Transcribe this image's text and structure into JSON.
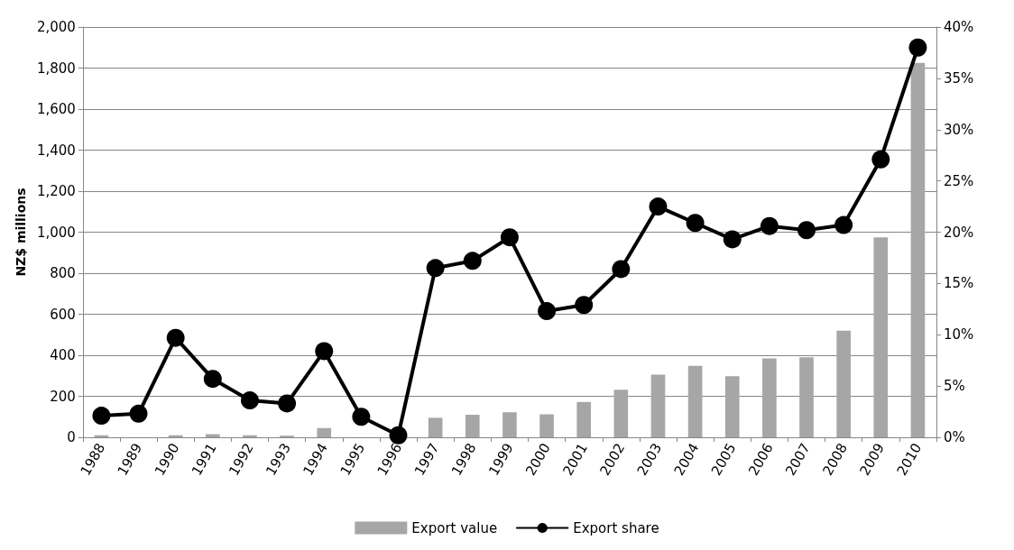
{
  "chart_data": {
    "type": "bar",
    "ylabel": "NZ$ millions",
    "categories": [
      "1988",
      "1989",
      "1990",
      "1991",
      "1992",
      "1993",
      "1994",
      "1995",
      "1996",
      "1997",
      "1998",
      "1999",
      "2000",
      "2001",
      "2002",
      "2003",
      "2004",
      "2005",
      "2006",
      "2007",
      "2008",
      "2009",
      "2010"
    ],
    "series": [
      {
        "name": "Export value",
        "color": "#a6a6a6",
        "values": [
          10,
          null,
          10,
          15,
          10,
          8,
          45,
          null,
          null,
          95,
          110,
          122,
          112,
          172,
          232,
          305,
          348,
          298,
          385,
          390,
          520,
          975,
          1825
        ]
      },
      {
        "name": "Export share",
        "type": "line",
        "axis": "y2",
        "color": "#000000",
        "marker": "circle",
        "values": [
          2.1,
          2.3,
          9.7,
          5.7,
          3.6,
          3.3,
          8.4,
          2.0,
          0.2,
          16.5,
          17.2,
          19.5,
          12.3,
          12.9,
          16.4,
          22.5,
          20.9,
          19.3,
          20.6,
          20.2,
          20.7,
          27.1,
          38.0
        ]
      }
    ],
    "ylim": [
      0,
      2000
    ],
    "yticks": [
      0,
      200,
      400,
      600,
      800,
      {
        "value": 1000,
        "label": "1,000"
      },
      {
        "value": 1200,
        "label": "1,200"
      },
      {
        "value": 1400,
        "label": "1,400"
      },
      {
        "value": 1600,
        "label": "1,600"
      },
      {
        "value": 1800,
        "label": "1,800"
      },
      {
        "value": 2000,
        "label": "2,000"
      }
    ],
    "y2lim": [
      0,
      40
    ],
    "y2ticks": [
      {
        "value": 0,
        "label": "0%"
      },
      {
        "value": 5,
        "label": "5%"
      },
      {
        "value": 10,
        "label": "10%"
      },
      {
        "value": 15,
        "label": "15%"
      },
      {
        "value": 20,
        "label": "20%"
      },
      {
        "value": 25,
        "label": "25%"
      },
      {
        "value": 30,
        "label": "30%"
      },
      {
        "value": 35,
        "label": "35%"
      },
      {
        "value": 40,
        "label": "40%"
      }
    ],
    "grid": "y",
    "legend": "bottom"
  }
}
